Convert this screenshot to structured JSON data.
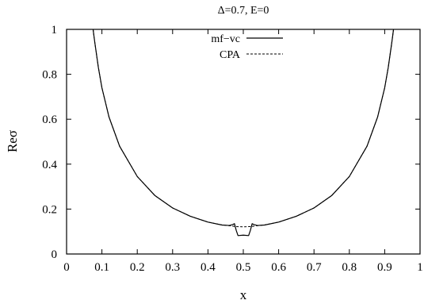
{
  "chart_data": {
    "type": "line",
    "title": "Δ=0.7, E=0",
    "xlabel": "x",
    "ylabel": "Reσ",
    "xlim": [
      0,
      1
    ],
    "ylim": [
      0,
      1
    ],
    "xticks": [
      "0",
      "0.1",
      "0.2",
      "0.3",
      "0.4",
      "0.5",
      "0.6",
      "0.7",
      "0.8",
      "0.9",
      "1"
    ],
    "yticks": [
      "0",
      "0.2",
      "0.4",
      "0.6",
      "0.8",
      "1"
    ],
    "grid": false,
    "legend_position": "top-center",
    "series": [
      {
        "name": "mf−vc",
        "style": "solid",
        "color": "#000000",
        "x": [
          0.075,
          0.08,
          0.09,
          0.1,
          0.12,
          0.15,
          0.2,
          0.25,
          0.3,
          0.35,
          0.4,
          0.44,
          0.46,
          0.47,
          0.475,
          0.48,
          0.485,
          0.5,
          0.515,
          0.52,
          0.525,
          0.53,
          0.54,
          0.56,
          0.6,
          0.65,
          0.7,
          0.75,
          0.8,
          0.85,
          0.88,
          0.9,
          0.91,
          0.92,
          0.925
        ],
        "y": [
          1.0,
          0.94,
          0.83,
          0.74,
          0.61,
          0.48,
          0.345,
          0.26,
          0.205,
          0.168,
          0.142,
          0.129,
          0.127,
          0.131,
          0.135,
          0.105,
          0.082,
          0.084,
          0.082,
          0.105,
          0.135,
          0.131,
          0.127,
          0.129,
          0.142,
          0.168,
          0.205,
          0.26,
          0.345,
          0.48,
          0.61,
          0.74,
          0.83,
          0.94,
          1.0
        ]
      },
      {
        "name": "CPA",
        "style": "dashed",
        "color": "#000000",
        "x": [
          0.075,
          0.08,
          0.09,
          0.1,
          0.12,
          0.15,
          0.2,
          0.25,
          0.3,
          0.35,
          0.4,
          0.44,
          0.46,
          0.48,
          0.5,
          0.52,
          0.54,
          0.56,
          0.6,
          0.65,
          0.7,
          0.75,
          0.8,
          0.85,
          0.88,
          0.9,
          0.91,
          0.92,
          0.925
        ],
        "y": [
          1.0,
          0.94,
          0.83,
          0.74,
          0.61,
          0.48,
          0.345,
          0.26,
          0.205,
          0.168,
          0.142,
          0.129,
          0.126,
          0.122,
          0.121,
          0.122,
          0.126,
          0.129,
          0.142,
          0.168,
          0.205,
          0.26,
          0.345,
          0.48,
          0.61,
          0.74,
          0.83,
          0.94,
          1.0
        ]
      }
    ]
  }
}
